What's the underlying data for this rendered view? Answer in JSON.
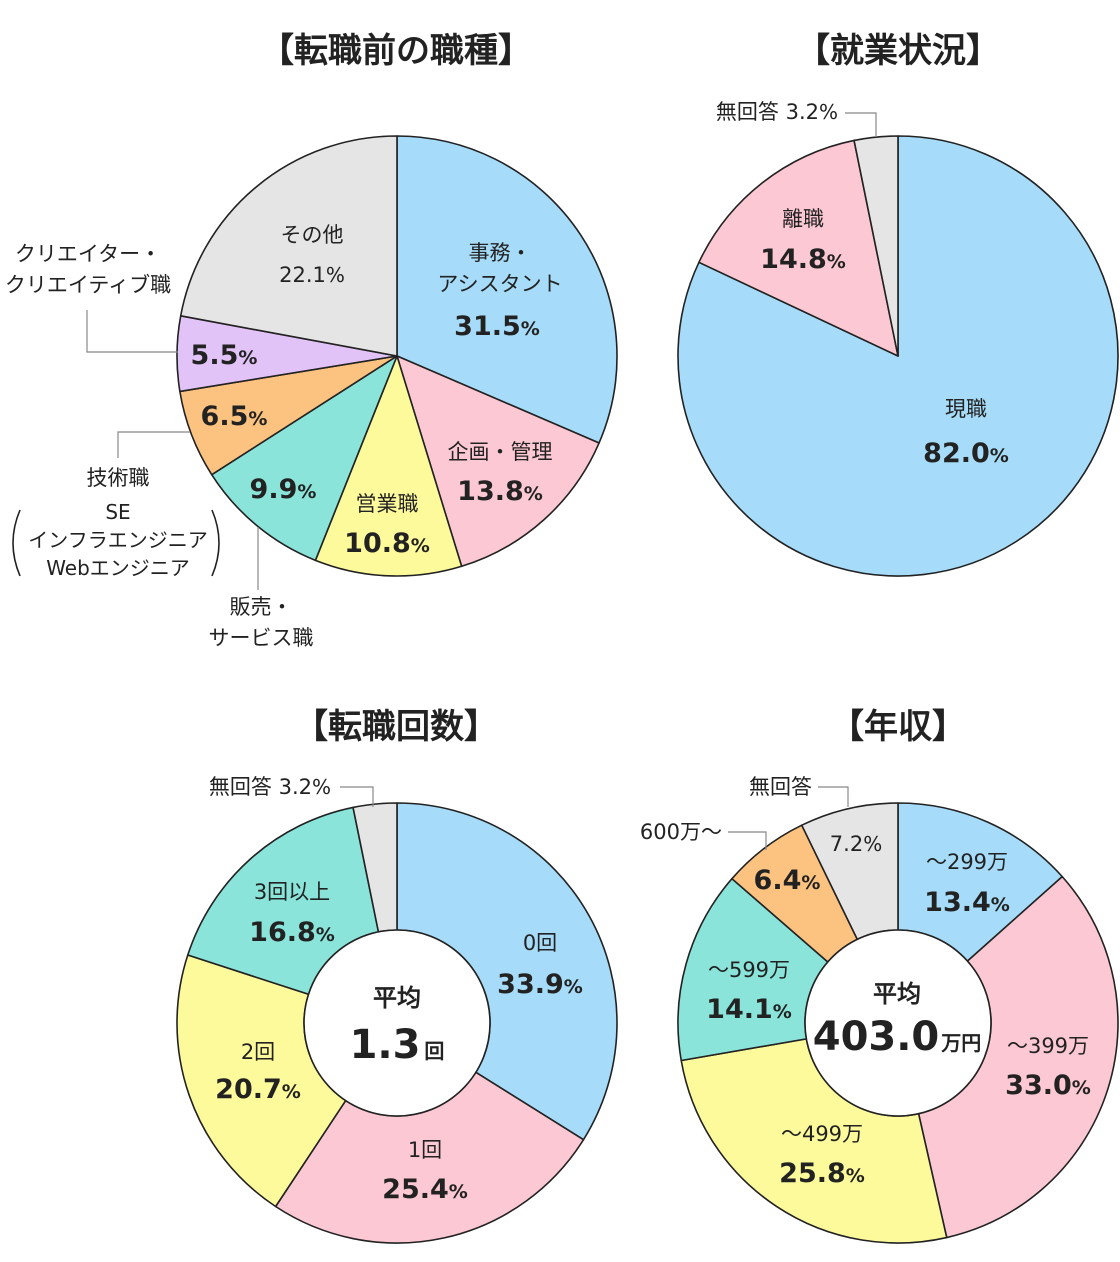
{
  "chart_data": [
    {
      "type": "pie",
      "title": "【転職前の職種】",
      "slices": [
        {
          "label": "事務・アシスタント",
          "value": 31.5,
          "color": "#a6dcf9"
        },
        {
          "label": "企画・管理",
          "value": 13.8,
          "color": "#fcc8d3"
        },
        {
          "label": "営業職",
          "value": 10.8,
          "color": "#fdfa9c"
        },
        {
          "label": "販売・サービス職",
          "value": 9.9,
          "color": "#8ae4da"
        },
        {
          "label": "技術職 SE インフラエンジニア Webエンジニア",
          "value": 6.5,
          "color": "#fcc27f"
        },
        {
          "label": "クリエイター・クリエイティブ職",
          "value": 5.5,
          "color": "#e2c3f7"
        },
        {
          "label": "その他",
          "value": 22.1,
          "color": "#e5e5e5"
        }
      ]
    },
    {
      "type": "pie",
      "title": "【就業状況】",
      "slices": [
        {
          "label": "現職",
          "value": 82.0,
          "color": "#a6dcf9"
        },
        {
          "label": "離職",
          "value": 14.8,
          "color": "#fcc8d3"
        },
        {
          "label": "無回答",
          "value": 3.2,
          "color": "#e5e5e5"
        }
      ]
    },
    {
      "type": "pie",
      "title": "【転職回数】",
      "center": {
        "label": "平均",
        "value": "1.3",
        "unit": "回"
      },
      "slices": [
        {
          "label": "0回",
          "value": 33.9,
          "color": "#a6dcf9"
        },
        {
          "label": "1回",
          "value": 25.4,
          "color": "#fcc8d3"
        },
        {
          "label": "2回",
          "value": 20.7,
          "color": "#fdfa9c"
        },
        {
          "label": "3回以上",
          "value": 16.8,
          "color": "#8ae4da"
        },
        {
          "label": "無回答",
          "value": 3.2,
          "color": "#e5e5e5"
        }
      ]
    },
    {
      "type": "pie",
      "title": "【年収】",
      "center": {
        "label": "平均",
        "value": "403.0",
        "unit": "万円"
      },
      "slices": [
        {
          "label": "～299万",
          "value": 13.4,
          "color": "#a6dcf9"
        },
        {
          "label": "～399万",
          "value": 33.0,
          "color": "#fcc8d3"
        },
        {
          "label": "～499万",
          "value": 25.8,
          "color": "#fdfa9c"
        },
        {
          "label": "～599万",
          "value": 14.1,
          "color": "#8ae4da"
        },
        {
          "label": "600万～",
          "value": 6.4,
          "color": "#fcc27f"
        },
        {
          "label": "無回答",
          "value": 7.2,
          "color": "#e5e5e5"
        }
      ]
    }
  ],
  "texts": {
    "c1": {
      "title": "【転職前の職種】",
      "s0": {
        "l1": "事務・",
        "l2": "アシスタント",
        "num": "31.5",
        "pct": "%"
      },
      "s1": {
        "l1": "企画・管理",
        "num": "13.8",
        "pct": "%"
      },
      "s2": {
        "l1": "営業職",
        "num": "10.8",
        "pct": "%"
      },
      "s3": {
        "num": "9.9",
        "pct": "%",
        "e1": "販売・",
        "e2": "サービス職"
      },
      "s4": {
        "num": "6.5",
        "pct": "%",
        "e1": "技術職",
        "e2": "SE",
        "e3": "インフラエンジニア",
        "e4": "Webエンジニア"
      },
      "s5": {
        "num": "5.5",
        "pct": "%",
        "e1": "クリエイター・",
        "e2": "クリエイティブ職"
      },
      "s6": {
        "l1": "その他",
        "num": "22.1",
        "pct": "%"
      }
    },
    "c2": {
      "title": "【就業状況】",
      "s0": {
        "l1": "現職",
        "num": "82.0",
        "pct": "%"
      },
      "s1": {
        "l1": "離職",
        "num": "14.8",
        "pct": "%"
      },
      "s2": {
        "e1": "無回答 3.2",
        "pct": "%"
      }
    },
    "c3": {
      "title": "【転職回数】",
      "s0": {
        "l1": "0回",
        "num": "33.9",
        "pct": "%"
      },
      "s1": {
        "l1": "1回",
        "num": "25.4",
        "pct": "%"
      },
      "s2": {
        "l1": "2回",
        "num": "20.7",
        "pct": "%"
      },
      "s3": {
        "l1": "3回以上",
        "num": "16.8",
        "pct": "%"
      },
      "s4": {
        "e1": "無回答 3.2",
        "pct": "%"
      }
    },
    "c4": {
      "title": "【年収】",
      "s0": {
        "l1": "～299万",
        "num": "13.4",
        "pct": "%"
      },
      "s1": {
        "l1": "～399万",
        "num": "33.0",
        "pct": "%"
      },
      "s2": {
        "l1": "～499万",
        "num": "25.8",
        "pct": "%"
      },
      "s3": {
        "l1": "～599万",
        "num": "14.1",
        "pct": "%"
      },
      "s4": {
        "num": "6.4",
        "pct": "%",
        "e1": "600万～"
      },
      "s5": {
        "num": "7.2",
        "pct": "%",
        "e1": "無回答"
      }
    }
  }
}
